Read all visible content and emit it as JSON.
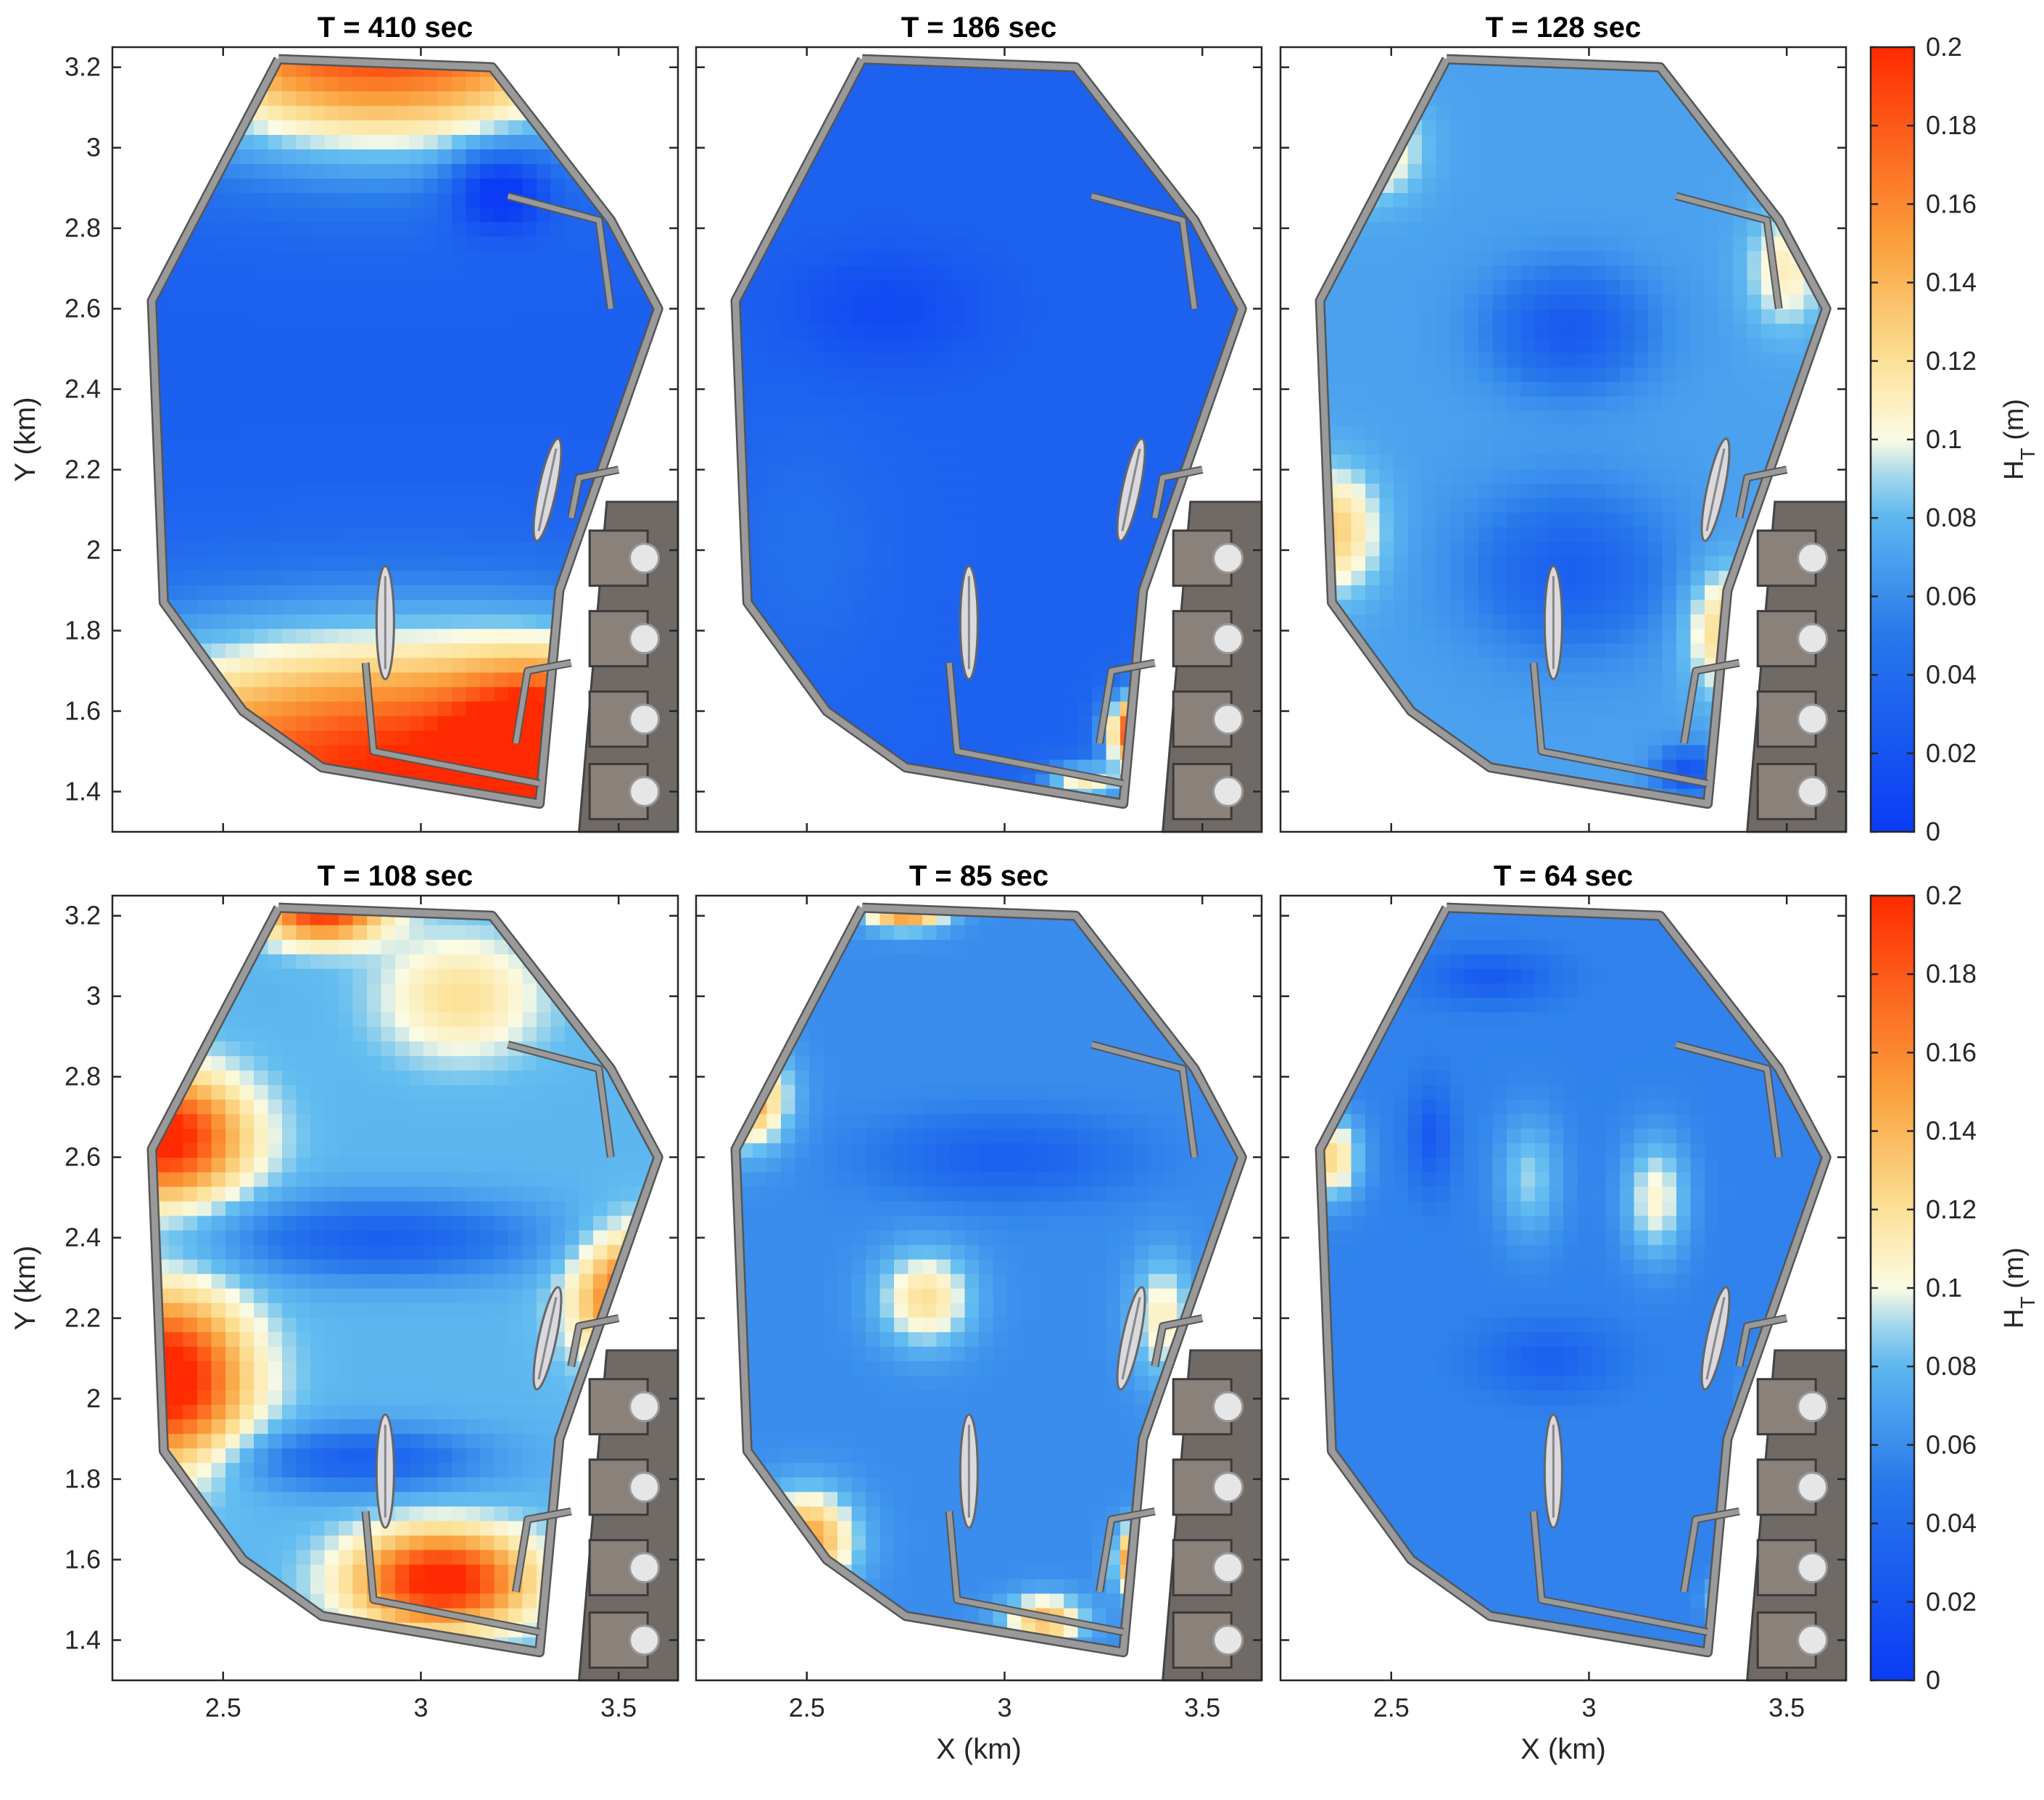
{
  "colors": {
    "low": "#0a3cf5",
    "mid": "#fbfbe4",
    "high": "#ff2a00",
    "breakwater": "#9a9a9a",
    "frame": "#262626"
  },
  "colorbar": {
    "label_main": "H",
    "label_sub": "T",
    "label_unit": " (m)",
    "ticks": [
      "0",
      "0.02",
      "0.04",
      "0.06",
      "0.08",
      "0.1",
      "0.12",
      "0.14",
      "0.16",
      "0.18",
      "0.2"
    ],
    "range": [
      0,
      0.2
    ]
  },
  "chart_data": [
    {
      "type": "heatmap",
      "title": "T = 410 sec",
      "xlabel": "",
      "ylabel": "Y (km)",
      "xticks": [
        "2.5",
        "3",
        "3.5"
      ],
      "yticks": [
        "1.4",
        "1.6",
        "1.8",
        "2",
        "2.2",
        "2.4",
        "2.6",
        "2.8",
        "3",
        "3.2"
      ],
      "xlim": [
        2.22,
        3.65
      ],
      "ylim": [
        1.3,
        3.25
      ],
      "clim": [
        0,
        0.2
      ],
      "field": {
        "bg": 0.03,
        "blobs": [
          {
            "x": 2.95,
            "y": 1.45,
            "amp": 0.17,
            "sx": 0.9,
            "sy": 0.35
          },
          {
            "x": 3.3,
            "y": 1.5,
            "amp": 0.1,
            "sx": 0.2,
            "sy": 0.2
          },
          {
            "x": 2.9,
            "y": 3.3,
            "amp": 0.17,
            "sx": 0.6,
            "sy": 0.3
          },
          {
            "x": 3.2,
            "y": 2.9,
            "amp": -0.06,
            "sx": 0.12,
            "sy": 0.1
          }
        ]
      }
    },
    {
      "type": "heatmap",
      "title": "T = 186 sec",
      "xlabel": "",
      "ylabel": "",
      "xticks": [
        "2.5",
        "3",
        "3.5"
      ],
      "yticks": [
        "1.4",
        "1.6",
        "1.8",
        "2",
        "2.2",
        "2.4",
        "2.6",
        "2.8",
        "3",
        "3.2"
      ],
      "xlim": [
        2.22,
        3.65
      ],
      "ylim": [
        1.3,
        3.25
      ],
      "clim": [
        0,
        0.2
      ],
      "field": {
        "bg": 0.032,
        "blobs": [
          {
            "x": 2.7,
            "y": 2.6,
            "amp": -0.02,
            "sx": 0.25,
            "sy": 0.15
          },
          {
            "x": 3.33,
            "y": 1.55,
            "amp": 0.16,
            "sx": 0.07,
            "sy": 0.09
          },
          {
            "x": 3.2,
            "y": 1.42,
            "amp": 0.08,
            "sx": 0.1,
            "sy": 0.05
          },
          {
            "x": 2.5,
            "y": 2.0,
            "amp": 0.012,
            "sx": 0.2,
            "sy": 0.3
          }
        ]
      }
    },
    {
      "type": "heatmap",
      "title": "T = 128 sec",
      "xlabel": "",
      "ylabel": "",
      "xticks": [
        "2.5",
        "3",
        "3.5"
      ],
      "yticks": [
        "1.4",
        "1.6",
        "1.8",
        "2",
        "2.2",
        "2.4",
        "2.6",
        "2.8",
        "3",
        "3.2"
      ],
      "xlim": [
        2.22,
        3.65
      ],
      "ylim": [
        1.3,
        3.25
      ],
      "clim": [
        0,
        0.2
      ],
      "field": {
        "bg": 0.07,
        "blobs": [
          {
            "x": 2.35,
            "y": 2.05,
            "amp": 0.06,
            "sx": 0.12,
            "sy": 0.15
          },
          {
            "x": 2.45,
            "y": 3.0,
            "amp": 0.05,
            "sx": 0.12,
            "sy": 0.12
          },
          {
            "x": 3.35,
            "y": 1.8,
            "amp": 0.06,
            "sx": 0.1,
            "sy": 0.15
          },
          {
            "x": 3.5,
            "y": 2.7,
            "amp": 0.04,
            "sx": 0.1,
            "sy": 0.15
          },
          {
            "x": 2.95,
            "y": 2.55,
            "amp": -0.045,
            "sx": 0.2,
            "sy": 0.15
          },
          {
            "x": 2.95,
            "y": 1.95,
            "amp": -0.04,
            "sx": 0.25,
            "sy": 0.2
          },
          {
            "x": 3.25,
            "y": 1.45,
            "amp": -0.05,
            "sx": 0.08,
            "sy": 0.06
          }
        ]
      }
    },
    {
      "type": "heatmap",
      "title": "T = 108 sec",
      "xlabel": "",
      "ylabel": "Y (km)",
      "xticks": [
        "2.5",
        "3",
        "3.5"
      ],
      "yticks": [
        "1.4",
        "1.6",
        "1.8",
        "2",
        "2.2",
        "2.4",
        "2.6",
        "2.8",
        "3",
        "3.2"
      ],
      "xlim": [
        2.22,
        3.65
      ],
      "ylim": [
        1.3,
        3.25
      ],
      "clim": [
        0,
        0.2
      ],
      "field": {
        "bg": 0.08,
        "blobs": [
          {
            "x": 2.35,
            "y": 2.65,
            "amp": 0.13,
            "sx": 0.2,
            "sy": 0.15
          },
          {
            "x": 2.35,
            "y": 2.05,
            "amp": 0.14,
            "sx": 0.2,
            "sy": 0.2
          },
          {
            "x": 3.05,
            "y": 1.55,
            "amp": 0.13,
            "sx": 0.22,
            "sy": 0.12
          },
          {
            "x": 3.55,
            "y": 2.25,
            "amp": 0.11,
            "sx": 0.15,
            "sy": 0.15
          },
          {
            "x": 2.75,
            "y": 3.22,
            "amp": 0.12,
            "sx": 0.15,
            "sy": 0.08
          },
          {
            "x": 3.1,
            "y": 3.0,
            "amp": 0.04,
            "sx": 0.2,
            "sy": 0.15
          },
          {
            "x": 2.9,
            "y": 2.4,
            "amp": -0.05,
            "sx": 0.4,
            "sy": 0.1
          },
          {
            "x": 2.85,
            "y": 1.85,
            "amp": -0.05,
            "sx": 0.3,
            "sy": 0.08
          }
        ]
      }
    },
    {
      "type": "heatmap",
      "title": "T = 85 sec",
      "xlabel": "X (km)",
      "ylabel": "",
      "xticks": [
        "2.5",
        "3",
        "3.5"
      ],
      "yticks": [
        "1.4",
        "1.6",
        "1.8",
        "2",
        "2.2",
        "2.4",
        "2.6",
        "2.8",
        "3",
        "3.2"
      ],
      "xlim": [
        2.22,
        3.65
      ],
      "ylim": [
        1.3,
        3.25
      ],
      "clim": [
        0,
        0.2
      ],
      "field": {
        "bg": 0.06,
        "blobs": [
          {
            "x": 2.35,
            "y": 2.75,
            "amp": 0.09,
            "sx": 0.1,
            "sy": 0.12
          },
          {
            "x": 2.5,
            "y": 1.65,
            "amp": 0.09,
            "sx": 0.12,
            "sy": 0.12
          },
          {
            "x": 2.8,
            "y": 2.25,
            "amp": 0.06,
            "sx": 0.12,
            "sy": 0.12
          },
          {
            "x": 3.35,
            "y": 1.6,
            "amp": 0.13,
            "sx": 0.06,
            "sy": 0.08
          },
          {
            "x": 3.1,
            "y": 1.45,
            "amp": 0.08,
            "sx": 0.1,
            "sy": 0.06
          },
          {
            "x": 2.75,
            "y": 3.22,
            "amp": 0.11,
            "sx": 0.1,
            "sy": 0.05
          },
          {
            "x": 3.4,
            "y": 2.2,
            "amp": 0.05,
            "sx": 0.08,
            "sy": 0.15
          },
          {
            "x": 3.0,
            "y": 2.6,
            "amp": -0.03,
            "sx": 0.3,
            "sy": 0.1
          }
        ]
      }
    },
    {
      "type": "heatmap",
      "title": "T = 64 sec",
      "xlabel": "X (km)",
      "ylabel": "",
      "xticks": [
        "2.5",
        "3",
        "3.5"
      ],
      "yticks": [
        "1.4",
        "1.6",
        "1.8",
        "2",
        "2.2",
        "2.4",
        "2.6",
        "2.8",
        "3",
        "3.2"
      ],
      "xlim": [
        2.22,
        3.65
      ],
      "ylim": [
        1.3,
        3.25
      ],
      "clim": [
        0,
        0.2
      ],
      "field": {
        "bg": 0.055,
        "blobs": [
          {
            "x": 2.35,
            "y": 2.6,
            "amp": 0.07,
            "sx": 0.07,
            "sy": 0.1
          },
          {
            "x": 3.17,
            "y": 2.5,
            "amp": 0.05,
            "sx": 0.08,
            "sy": 0.15
          },
          {
            "x": 2.85,
            "y": 2.55,
            "amp": 0.035,
            "sx": 0.08,
            "sy": 0.15
          },
          {
            "x": 3.35,
            "y": 1.5,
            "amp": 0.05,
            "sx": 0.05,
            "sy": 0.05
          },
          {
            "x": 3.45,
            "y": 2.0,
            "amp": 0.04,
            "sx": 0.05,
            "sy": 0.08
          },
          {
            "x": 2.6,
            "y": 2.65,
            "amp": -0.03,
            "sx": 0.05,
            "sy": 0.12
          },
          {
            "x": 2.75,
            "y": 3.05,
            "amp": -0.03,
            "sx": 0.15,
            "sy": 0.06
          },
          {
            "x": 2.9,
            "y": 2.1,
            "amp": -0.025,
            "sx": 0.15,
            "sy": 0.08
          }
        ]
      }
    }
  ]
}
